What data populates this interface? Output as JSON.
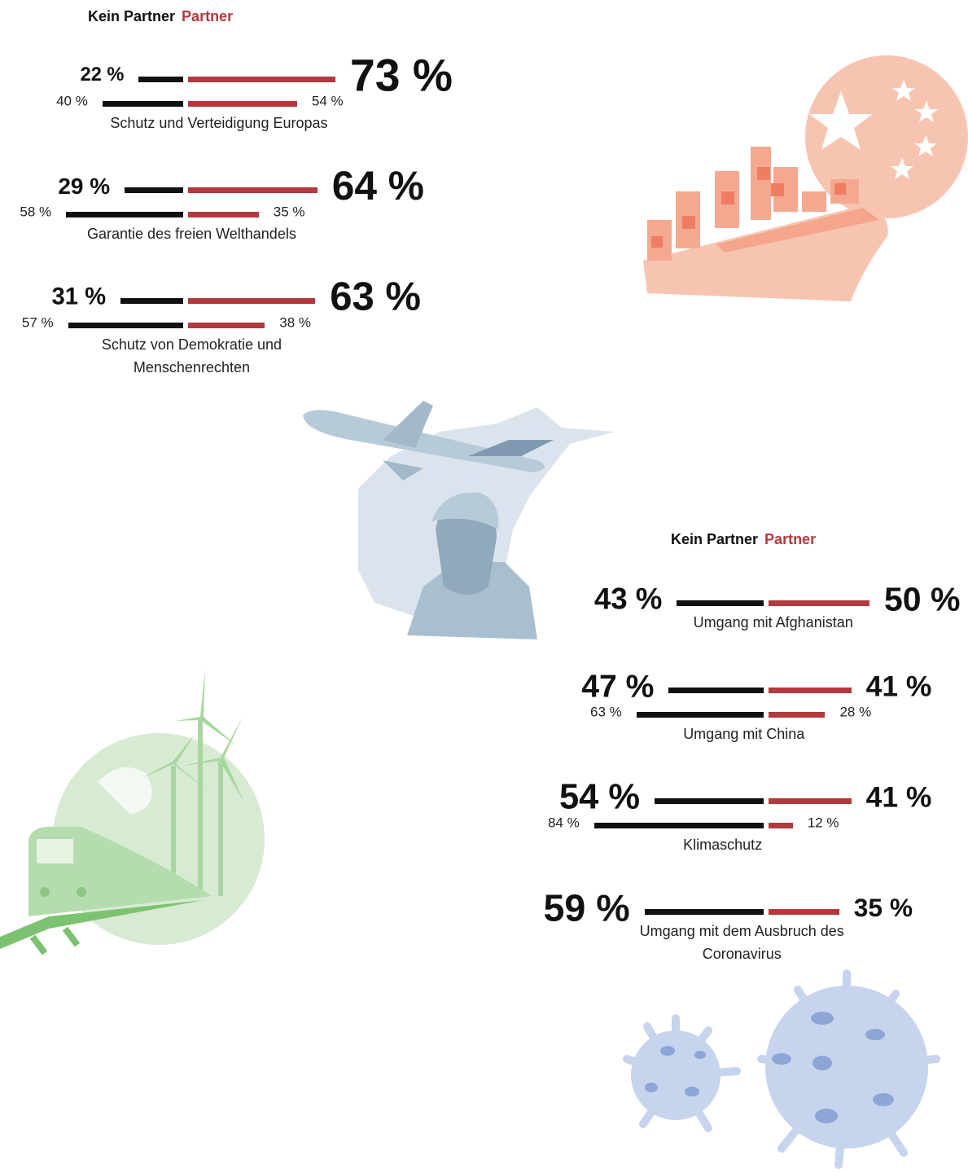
{
  "chart_data": [
    {
      "type": "butterfly",
      "categories": [
        "Schutz und Verteidigung Europas",
        "Garantie des freien Welthandels",
        "Schutz von Demokratie und Menschenrechten"
      ],
      "series": [
        {
          "name": "Kein Partner",
          "color": "#111111",
          "values": [
            22,
            29,
            31
          ],
          "value_labels": [
            "22 %",
            "29 %",
            "31 %"
          ],
          "secondary_values": [
            40,
            58,
            57
          ],
          "secondary_labels": [
            "40 %",
            "58 %",
            "57 %"
          ]
        },
        {
          "name": "Partner",
          "color": "#b2393d",
          "values": [
            73,
            64,
            63
          ],
          "value_labels": [
            "73 %",
            "64 %",
            "63 %"
          ],
          "secondary_values": [
            54,
            35,
            38
          ],
          "secondary_labels": [
            "54 %",
            "35 %",
            "38 %"
          ]
        }
      ]
    },
    {
      "type": "butterfly",
      "categories": [
        "Umgang mit Afghanistan",
        "Umgang mit China",
        "Klimaschutz",
        "Umgang mit dem Ausbruch des Coronavirus"
      ],
      "series": [
        {
          "name": "Kein Partner",
          "color": "#111111",
          "values": [
            43,
            47,
            54,
            59
          ],
          "value_labels": [
            "43 %",
            "47 %",
            "54 %",
            "59 %"
          ],
          "secondary_values": [
            null,
            63,
            84,
            null
          ],
          "secondary_labels": [
            null,
            "63 %",
            "84 %",
            null
          ]
        },
        {
          "name": "Partner",
          "color": "#b2393d",
          "values": [
            50,
            41,
            41,
            35
          ],
          "value_labels": [
            "50 %",
            "41 %",
            "41 %",
            "35 %"
          ],
          "secondary_values": [
            null,
            28,
            12,
            null
          ],
          "secondary_labels": [
            null,
            "28 %",
            "12 %",
            null
          ]
        }
      ]
    }
  ]
}
